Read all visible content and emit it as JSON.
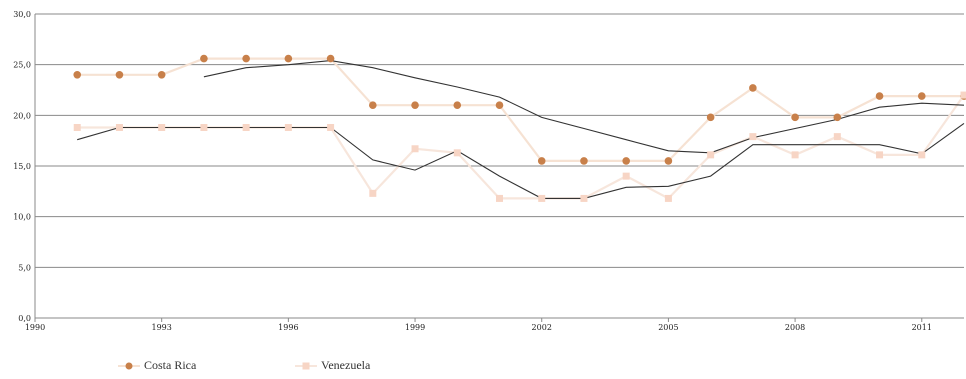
{
  "chart_data": {
    "type": "line",
    "title": "",
    "xlabel": "",
    "ylabel": "",
    "xlim": [
      1990,
      2012
    ],
    "ylim": [
      0,
      30
    ],
    "y_ticks": [
      "0,0",
      "5,0",
      "10,0",
      "15,0",
      "20,0",
      "25,0",
      "30,0"
    ],
    "x_ticks": [
      "1990",
      "1993",
      "1996",
      "1999",
      "2002",
      "2005",
      "2008",
      "2011"
    ],
    "grid": "horizontal",
    "legend_position": "bottom-left",
    "series": [
      {
        "name": "Costa Rica",
        "color": "#c8804a",
        "line_color": "#f6e2d3",
        "marker": "circle",
        "x": [
          1991,
          1992,
          1993,
          1994,
          1995,
          1996,
          1997,
          1998,
          1999,
          2000,
          2001,
          2002,
          2003,
          2004,
          2005,
          2006,
          2007,
          2008,
          2009,
          2010,
          2011,
          2012
        ],
        "values": [
          24.0,
          24.0,
          24.0,
          25.6,
          25.6,
          25.6,
          25.6,
          21.0,
          21.0,
          21.0,
          21.0,
          15.5,
          15.5,
          15.5,
          15.5,
          19.8,
          22.7,
          19.8,
          19.8,
          21.9,
          21.9,
          21.9
        ]
      },
      {
        "name": "Venezuela",
        "color": "#f7d5c5",
        "line_color": "#f7e6dc",
        "marker": "square",
        "x": [
          1991,
          1992,
          1993,
          1994,
          1995,
          1996,
          1997,
          1998,
          1999,
          2000,
          2001,
          2002,
          2003,
          2004,
          2005,
          2006,
          2007,
          2008,
          2009,
          2010,
          2011,
          2012
        ],
        "values": [
          18.8,
          18.8,
          18.8,
          18.8,
          18.8,
          18.8,
          18.8,
          12.3,
          16.7,
          16.3,
          11.8,
          11.8,
          11.8,
          14.0,
          11.8,
          16.1,
          17.9,
          16.1,
          17.9,
          16.1,
          16.1,
          22.0
        ]
      },
      {
        "name": "",
        "color": "#333333",
        "marker": "none",
        "x": [
          1994,
          1995,
          1996,
          1997,
          1998,
          1999,
          2000,
          2001,
          2002,
          2003,
          2004,
          2005,
          2006,
          2007,
          2008,
          2009,
          2010,
          2011,
          2012
        ],
        "values": [
          23.8,
          24.7,
          25.0,
          25.4,
          24.7,
          23.7,
          22.8,
          21.8,
          19.8,
          18.7,
          17.6,
          16.5,
          16.3,
          17.8,
          18.7,
          19.6,
          20.8,
          21.2,
          21.0
        ]
      },
      {
        "name": "",
        "color": "#333333",
        "marker": "none",
        "x": [
          1991,
          1992,
          1993,
          1994,
          1995,
          1996,
          1997,
          1998,
          1999,
          2000,
          2001,
          2002,
          2003,
          2004,
          2005,
          2006,
          2007,
          2008,
          2009,
          2010,
          2011,
          2012
        ],
        "values": [
          17.6,
          18.8,
          18.8,
          18.8,
          18.8,
          18.8,
          18.8,
          15.6,
          14.6,
          16.5,
          14.0,
          11.8,
          11.8,
          12.9,
          13.0,
          14.0,
          17.1,
          17.1,
          17.1,
          17.1,
          16.2,
          19.2
        ]
      }
    ]
  }
}
